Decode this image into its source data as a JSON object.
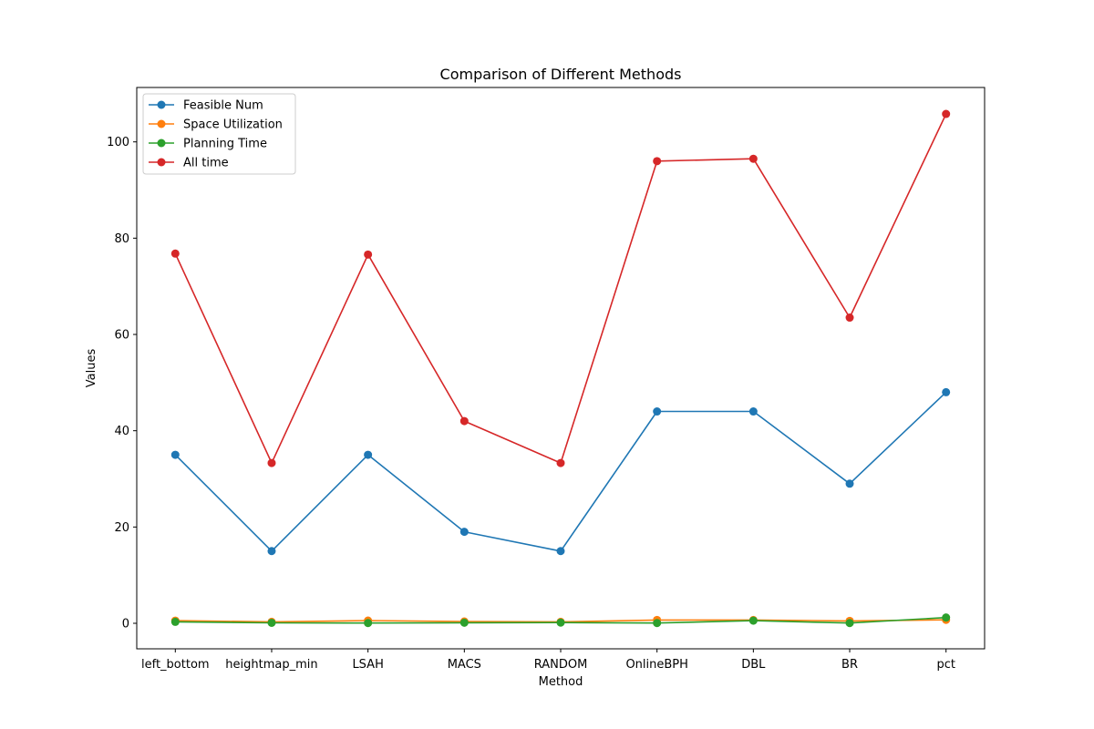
{
  "chart_data": {
    "type": "line",
    "title": "Comparison of Different Methods",
    "xlabel": "Method",
    "ylabel": "Values",
    "categories": [
      "left_bottom",
      "heightmap_min",
      "LSAH",
      "MACS",
      "RANDOM",
      "OnlineBPH",
      "DBL",
      "BR",
      "pct"
    ],
    "ylim": [
      -5.3,
      111.3
    ],
    "yticks": [
      0,
      20,
      40,
      60,
      80,
      100
    ],
    "grid": false,
    "legend_position": "top-left",
    "series": [
      {
        "name": "Feasible Num",
        "color": "#1f77b4",
        "values": [
          35,
          15,
          35,
          19,
          15,
          44,
          44,
          29,
          48
        ]
      },
      {
        "name": "Space Utilization",
        "color": "#ff7f0e",
        "values": [
          0.55,
          0.3,
          0.56,
          0.37,
          0.3,
          0.69,
          0.68,
          0.5,
          0.72
        ]
      },
      {
        "name": "Planning Time",
        "color": "#2ca02c",
        "values": [
          0.3,
          0.1,
          0.05,
          0.12,
          0.15,
          0.05,
          0.55,
          0.05,
          1.2
        ]
      },
      {
        "name": "All time",
        "color": "#d62728",
        "values": [
          76.8,
          33.3,
          76.6,
          42.0,
          33.3,
          96.0,
          96.5,
          63.5,
          105.8
        ]
      }
    ]
  }
}
